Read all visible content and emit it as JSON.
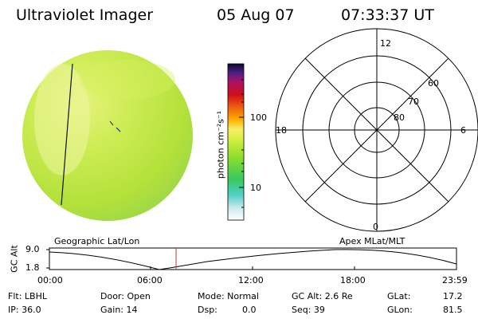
{
  "header": {
    "title": "Ultraviolet Imager",
    "date": "05 Aug 07",
    "time": "07:33:37 UT"
  },
  "colorbar": {
    "unit": "photon cm⁻²s⁻¹",
    "ticks": [
      "100",
      "10"
    ]
  },
  "polar": {
    "mlt_labels": {
      "top": "12",
      "left": "18",
      "right": "6",
      "bottom": "0"
    },
    "lat_labels": [
      "60",
      "70",
      "80"
    ]
  },
  "orbit": {
    "left_label": "Geographic Lat/Lon",
    "right_label": "Apex MLat/MLT",
    "y_title": "GC Alt",
    "y_ticks": [
      "9.0",
      "1.8"
    ],
    "x_ticks": [
      "00:00",
      "06:00",
      "12:00",
      "18:00",
      "23:59"
    ]
  },
  "status": {
    "row1": {
      "flt": "Flt: LBHL",
      "door": "Door: Open",
      "mode": "Mode: Normal",
      "gcalt": "GC Alt: 2.6 Re",
      "glat": "GLat:",
      "glat_val": "17.2"
    },
    "row2": {
      "ip": "IP: 36.0",
      "gain": "Gain: 14",
      "dsp": "Dsp:",
      "dsp_val": "0.0",
      "seq": "Seq: 39",
      "glon": "GLon:",
      "glon_val": "81.5"
    }
  },
  "colors": {
    "disk": "#b9e63a",
    "disk_light": "#e8f57a",
    "marker": "#c0392b"
  }
}
